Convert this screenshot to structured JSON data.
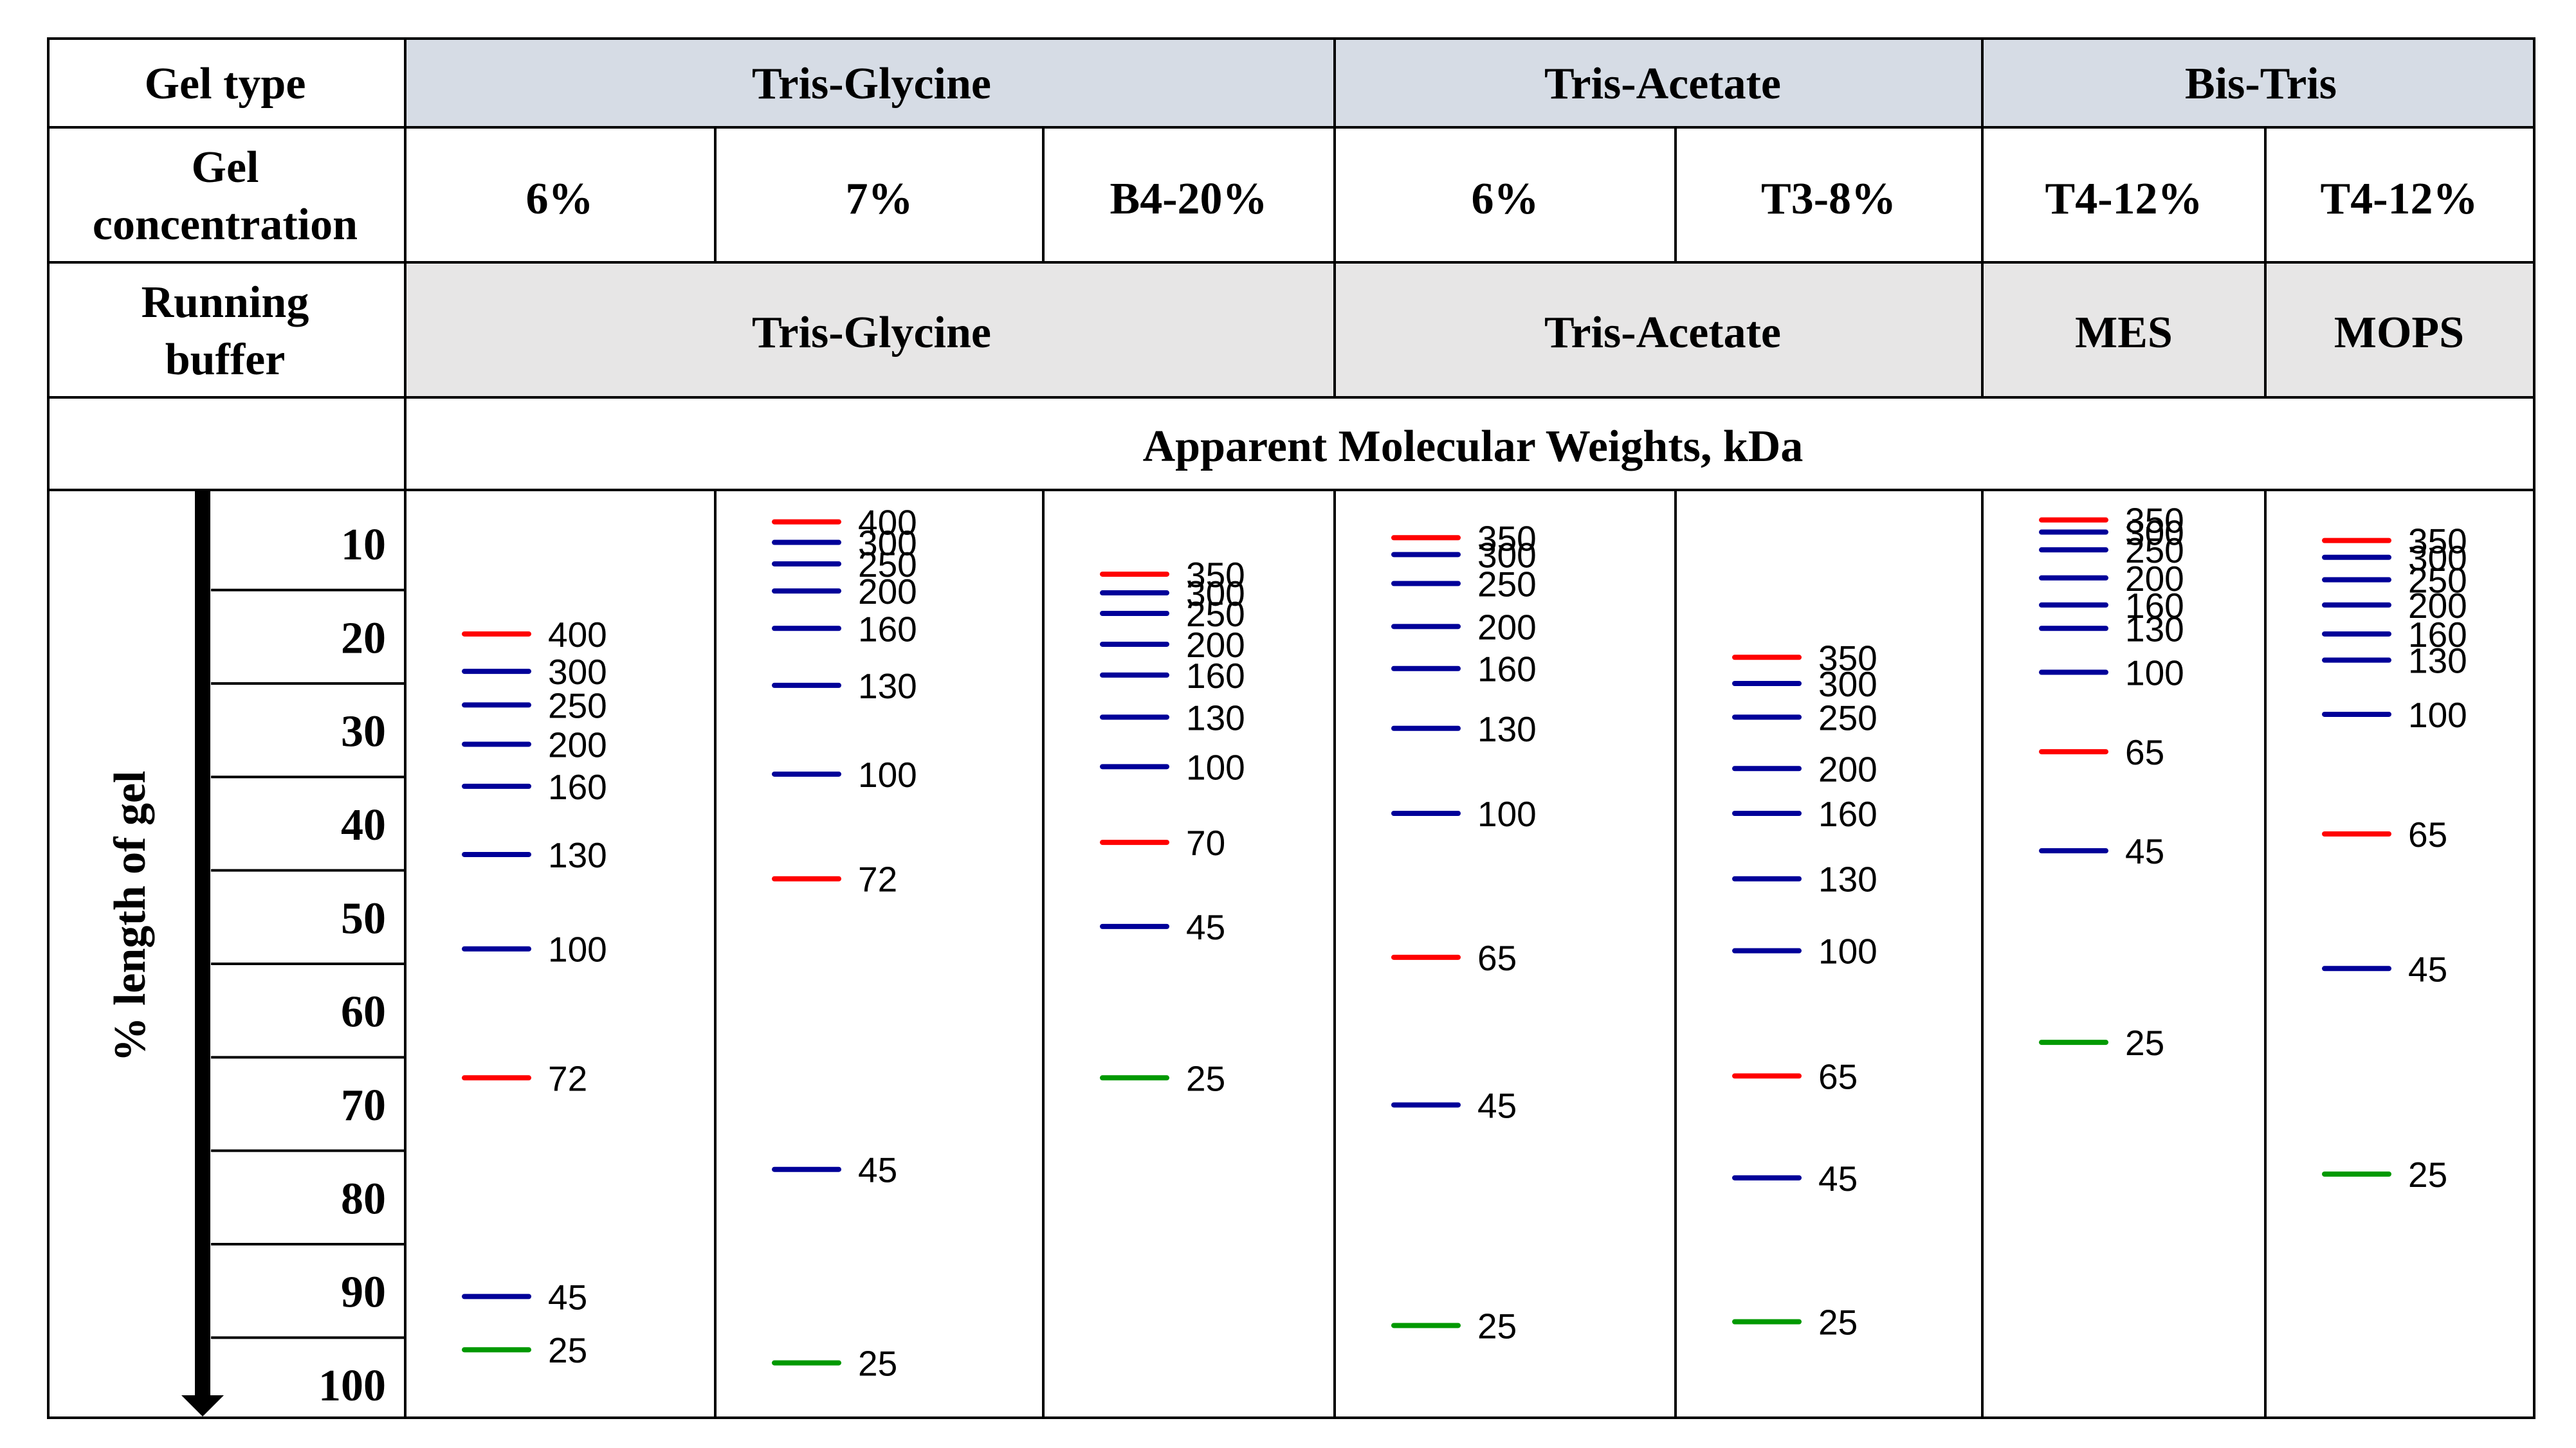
{
  "header": {
    "gel_type_label": "Gel type",
    "gel_conc_label": [
      "Gel",
      "concentration"
    ],
    "running_buffer_label": [
      "Running",
      "buffer"
    ],
    "apparent_mw_label": "Apparent Molecular Weights, kDa",
    "axis_label": "% length of gel",
    "gel_types": [
      "Tris-Glycine",
      "Tris-Acetate",
      "Bis-Tris"
    ],
    "buffers": [
      "Tris-Glycine",
      "Tris-Acetate",
      "MES",
      "MOPS"
    ],
    "concentrations": [
      "6%",
      "7%",
      "B4-20%",
      "6%",
      "T3-8%",
      "T4-12%",
      "T4-12%"
    ]
  },
  "colors": {
    "gel_type_bg": "#D6DCE5",
    "buffer_bg": "#E7E6E6",
    "red": "#FF0000",
    "blue": "#000099",
    "green": "#009900"
  },
  "scale": {
    "ticks": [
      "10",
      "20",
      "30",
      "40",
      "50",
      "60",
      "70",
      "80",
      "90",
      "100"
    ]
  },
  "chart_data": {
    "type": "diagram",
    "y_unit": "% length of gel",
    "lanes": [
      {
        "gel": "Tris-Glycine",
        "concentration": "6%",
        "buffer": "Tris-Glycine",
        "bands": [
          {
            "kda": "400",
            "pos": 19.7,
            "color": "red"
          },
          {
            "kda": "300",
            "pos": 23.7,
            "color": "blue"
          },
          {
            "kda": "250",
            "pos": 27.3,
            "color": "blue"
          },
          {
            "kda": "200",
            "pos": 31.5,
            "color": "blue"
          },
          {
            "kda": "160",
            "pos": 36.0,
            "color": "blue"
          },
          {
            "kda": "130",
            "pos": 43.3,
            "color": "blue"
          },
          {
            "kda": "100",
            "pos": 53.4,
            "color": "blue"
          },
          {
            "kda": "72",
            "pos": 67.2,
            "color": "red"
          },
          {
            "kda": "45",
            "pos": 90.6,
            "color": "blue"
          },
          {
            "kda": "25",
            "pos": 96.3,
            "color": "green"
          }
        ]
      },
      {
        "gel": "Tris-Glycine",
        "concentration": "7%",
        "buffer": "Tris-Glycine",
        "bands": [
          {
            "kda": "400",
            "pos": 7.7,
            "color": "red"
          },
          {
            "kda": "300",
            "pos": 9.9,
            "color": "blue"
          },
          {
            "kda": "250",
            "pos": 12.2,
            "color": "blue"
          },
          {
            "kda": "200",
            "pos": 15.1,
            "color": "blue"
          },
          {
            "kda": "160",
            "pos": 19.1,
            "color": "blue"
          },
          {
            "kda": "130",
            "pos": 25.2,
            "color": "blue"
          },
          {
            "kda": "100",
            "pos": 34.7,
            "color": "blue"
          },
          {
            "kda": "72",
            "pos": 45.9,
            "color": "red"
          },
          {
            "kda": "45",
            "pos": 77.0,
            "color": "blue"
          },
          {
            "kda": "25",
            "pos": 97.7,
            "color": "green"
          }
        ]
      },
      {
        "gel": "Tris-Glycine",
        "concentration": "B4-20%",
        "buffer": "Tris-Glycine",
        "bands": [
          {
            "kda": "350",
            "pos": 13.3,
            "color": "red"
          },
          {
            "kda": "300",
            "pos": 15.3,
            "color": "blue"
          },
          {
            "kda": "250",
            "pos": 17.5,
            "color": "blue"
          },
          {
            "kda": "200",
            "pos": 20.8,
            "color": "blue"
          },
          {
            "kda": "160",
            "pos": 24.1,
            "color": "blue"
          },
          {
            "kda": "130",
            "pos": 28.6,
            "color": "blue"
          },
          {
            "kda": "100",
            "pos": 33.9,
            "color": "blue"
          },
          {
            "kda": "70",
            "pos": 42.0,
            "color": "red"
          },
          {
            "kda": "45",
            "pos": 51.0,
            "color": "blue"
          },
          {
            "kda": "25",
            "pos": 67.2,
            "color": "green"
          }
        ]
      },
      {
        "gel": "Tris-Acetate",
        "concentration": "6%",
        "buffer": "Tris-Acetate",
        "bands": [
          {
            "kda": "350",
            "pos": 9.4,
            "color": "red"
          },
          {
            "kda": "300",
            "pos": 11.2,
            "color": "blue"
          },
          {
            "kda": "250",
            "pos": 14.3,
            "color": "blue"
          },
          {
            "kda": "200",
            "pos": 18.9,
            "color": "blue"
          },
          {
            "kda": "160",
            "pos": 23.4,
            "color": "blue"
          },
          {
            "kda": "130",
            "pos": 29.8,
            "color": "blue"
          },
          {
            "kda": "100",
            "pos": 38.9,
            "color": "blue"
          },
          {
            "kda": "65",
            "pos": 54.3,
            "color": "red"
          },
          {
            "kda": "45",
            "pos": 70.1,
            "color": "blue"
          },
          {
            "kda": "25",
            "pos": 93.7,
            "color": "green"
          }
        ]
      },
      {
        "gel": "Tris-Acetate",
        "concentration": "T3-8%",
        "buffer": "Tris-Acetate",
        "bands": [
          {
            "kda": "350",
            "pos": 22.2,
            "color": "red"
          },
          {
            "kda": "300",
            "pos": 25.0,
            "color": "blue"
          },
          {
            "kda": "250",
            "pos": 28.6,
            "color": "blue"
          },
          {
            "kda": "200",
            "pos": 34.1,
            "color": "blue"
          },
          {
            "kda": "160",
            "pos": 38.9,
            "color": "blue"
          },
          {
            "kda": "130",
            "pos": 45.9,
            "color": "blue"
          },
          {
            "kda": "100",
            "pos": 53.6,
            "color": "blue"
          },
          {
            "kda": "65",
            "pos": 67.0,
            "color": "red"
          },
          {
            "kda": "45",
            "pos": 77.9,
            "color": "blue"
          },
          {
            "kda": "25",
            "pos": 93.3,
            "color": "green"
          }
        ]
      },
      {
        "gel": "Bis-Tris",
        "concentration": "T4-12%",
        "buffer": "MES",
        "bands": [
          {
            "kda": "350",
            "pos": 7.5,
            "color": "red"
          },
          {
            "kda": "300",
            "pos": 8.8,
            "color": "blue"
          },
          {
            "kda": "250",
            "pos": 10.7,
            "color": "blue"
          },
          {
            "kda": "200",
            "pos": 13.7,
            "color": "blue"
          },
          {
            "kda": "160",
            "pos": 16.6,
            "color": "blue"
          },
          {
            "kda": "130",
            "pos": 19.1,
            "color": "blue"
          },
          {
            "kda": "100",
            "pos": 23.8,
            "color": "blue"
          },
          {
            "kda": "65",
            "pos": 32.3,
            "color": "red"
          },
          {
            "kda": "45",
            "pos": 42.9,
            "color": "blue"
          },
          {
            "kda": "25",
            "pos": 63.4,
            "color": "green"
          }
        ]
      },
      {
        "gel": "Bis-Tris",
        "concentration": "T4-12%",
        "buffer": "MOPS",
        "bands": [
          {
            "kda": "350",
            "pos": 9.7,
            "color": "red"
          },
          {
            "kda": "300",
            "pos": 11.5,
            "color": "blue"
          },
          {
            "kda": "250",
            "pos": 13.9,
            "color": "blue"
          },
          {
            "kda": "200",
            "pos": 16.6,
            "color": "blue"
          },
          {
            "kda": "160",
            "pos": 19.7,
            "color": "blue"
          },
          {
            "kda": "130",
            "pos": 22.5,
            "color": "blue"
          },
          {
            "kda": "100",
            "pos": 28.3,
            "color": "blue"
          },
          {
            "kda": "65",
            "pos": 41.1,
            "color": "red"
          },
          {
            "kda": "45",
            "pos": 55.5,
            "color": "blue"
          },
          {
            "kda": "25",
            "pos": 77.5,
            "color": "green"
          }
        ]
      }
    ]
  }
}
